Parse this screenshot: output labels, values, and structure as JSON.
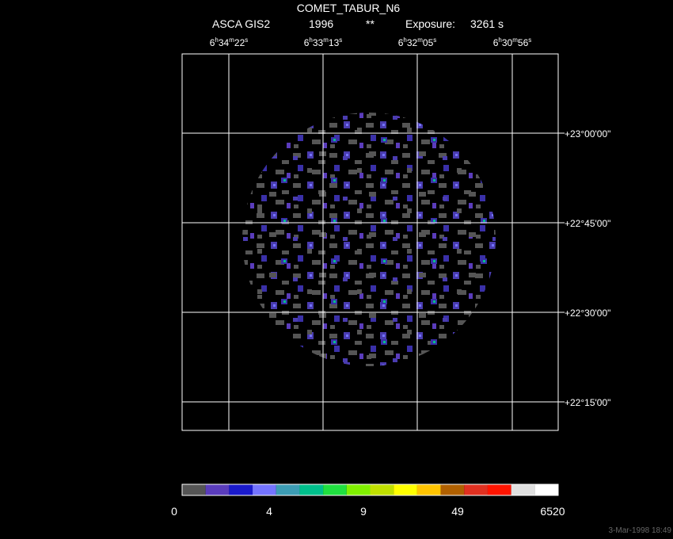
{
  "header": {
    "title": "COMET_TABUR_N6",
    "instrument": "ASCA GIS2",
    "year": "1996",
    "flag": "**",
    "exposure_label": "Exposure:",
    "exposure": "3261 s"
  },
  "ra_labels": [
    [
      "6",
      "h",
      "34",
      "m",
      "22",
      "s"
    ],
    [
      "6",
      "h",
      "33",
      "m",
      "13",
      "s"
    ],
    [
      "6",
      "h",
      "32",
      "m",
      "05",
      "s"
    ],
    [
      "6",
      "h",
      "30",
      "m",
      "56",
      "s"
    ]
  ],
  "dec_labels": [
    "+23°00'00\"",
    "+22°45'00\"",
    "+22°30'00\"",
    "+22°15'00\""
  ],
  "colorbar": {
    "colors": [
      "#555555",
      "#5a3cbc",
      "#1a1acc",
      "#7474ff",
      "#3c9cb4",
      "#00c08c",
      "#20e040",
      "#80f000",
      "#c0e000",
      "#ffff00",
      "#ffc400",
      "#b06000",
      "#e03020",
      "#ff1400",
      "#e0e0e0",
      "#ffffff"
    ],
    "labels": [
      "0",
      "4",
      "9",
      "49",
      "6520"
    ]
  },
  "timestamp": "3-Mar-1998 18:49"
}
